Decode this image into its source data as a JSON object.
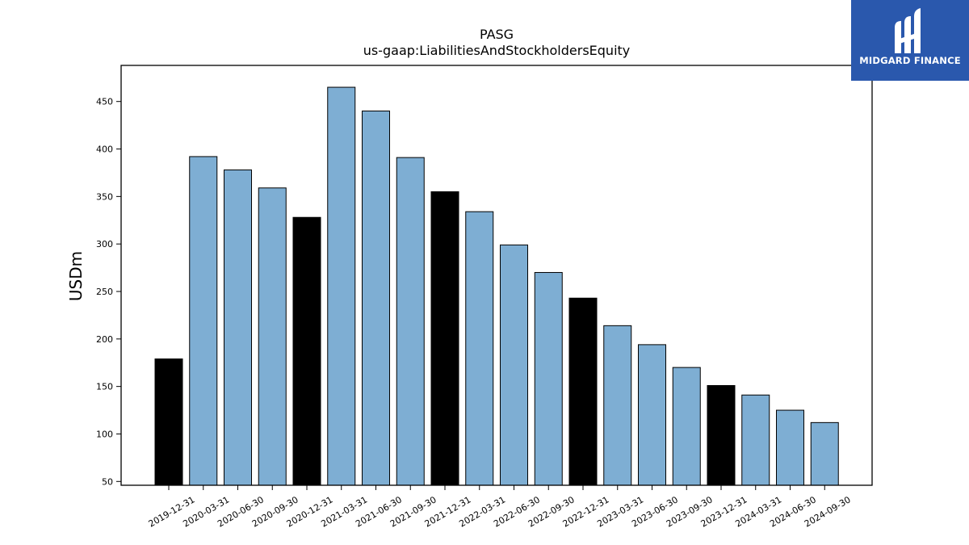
{
  "logo": {
    "text": "MIDGARD FINANCE",
    "color": "#2a58ad"
  },
  "chart_data": {
    "type": "bar",
    "title": "PASG",
    "subtitle": "us-gaap:LiabilitiesAndStockholdersEquity",
    "xlabel": "",
    "ylabel": "USDm",
    "ylim": [
      46,
      488
    ],
    "yticks": [
      50,
      100,
      150,
      200,
      250,
      300,
      350,
      400,
      450
    ],
    "grid": false,
    "colors": {
      "quarter": "#7eaed3",
      "year_end": "#000000"
    },
    "categories": [
      "2019-12-31",
      "2020-03-31",
      "2020-06-30",
      "2020-09-30",
      "2020-12-31",
      "2021-03-31",
      "2021-06-30",
      "2021-09-30",
      "2021-12-31",
      "2022-03-31",
      "2022-06-30",
      "2022-09-30",
      "2022-12-31",
      "2023-03-31",
      "2023-06-30",
      "2023-09-30",
      "2023-12-31",
      "2024-03-31",
      "2024-06-30",
      "2024-09-30"
    ],
    "values": [
      179,
      392,
      378,
      359,
      328,
      465,
      440,
      391,
      355,
      334,
      299,
      270,
      243,
      214,
      194,
      170,
      151,
      141,
      125,
      112
    ],
    "year_end": [
      true,
      false,
      false,
      false,
      true,
      false,
      false,
      false,
      true,
      false,
      false,
      false,
      true,
      false,
      false,
      false,
      true,
      false,
      false,
      false
    ]
  }
}
